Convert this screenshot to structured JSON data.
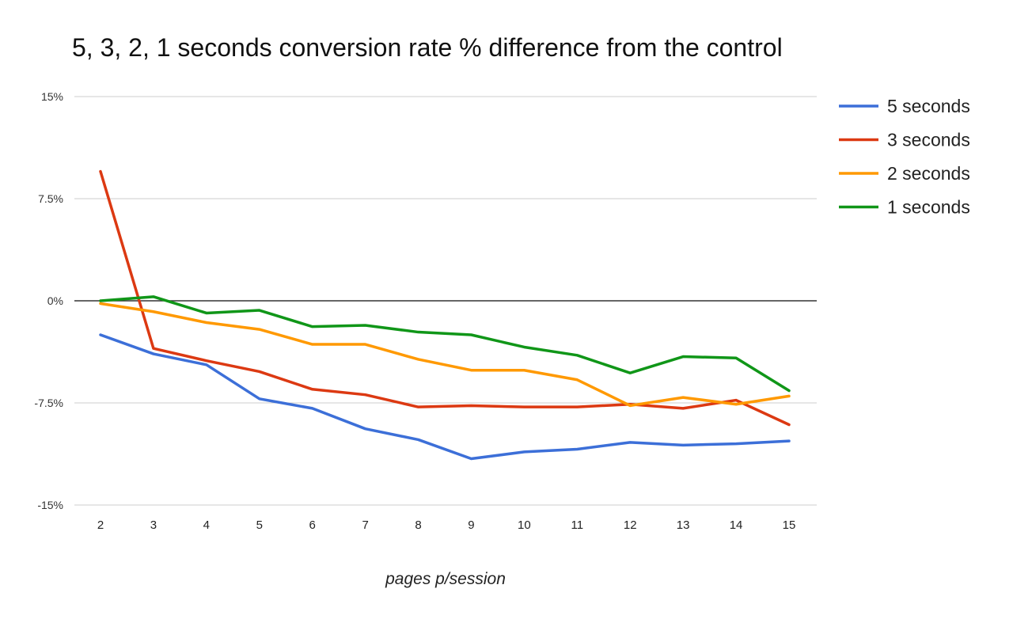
{
  "chart_data": {
    "type": "line",
    "title": "5, 3, 2, 1 seconds conversion rate % difference from the control",
    "xlabel": "pages p/session",
    "ylabel": "",
    "x": [
      2,
      3,
      4,
      5,
      6,
      7,
      8,
      9,
      10,
      11,
      12,
      13,
      14,
      15
    ],
    "ylim": [
      -15,
      15
    ],
    "yticks": [
      15,
      7.5,
      0,
      -7.5,
      -15
    ],
    "ytick_labels": [
      "15%",
      "7.5%",
      "0%",
      "-7.5%",
      "-15%"
    ],
    "grid": true,
    "legend_position": "right",
    "series": [
      {
        "name": "5 seconds",
        "color": "#3c6fd8",
        "values": [
          -2.5,
          -3.9,
          -4.7,
          -7.2,
          -7.9,
          -9.4,
          -10.2,
          -11.6,
          -11.1,
          -10.9,
          -10.4,
          -10.6,
          -10.5,
          -10.3
        ]
      },
      {
        "name": "3 seconds",
        "color": "#dc3912",
        "values": [
          9.5,
          -3.5,
          -4.4,
          -5.2,
          -6.5,
          -6.9,
          -7.8,
          -7.7,
          -7.8,
          -7.8,
          -7.6,
          -7.9,
          -7.3,
          -9.1
        ]
      },
      {
        "name": "2 seconds",
        "color": "#ff9900",
        "values": [
          -0.2,
          -0.8,
          -1.6,
          -2.1,
          -3.2,
          -3.2,
          -4.3,
          -5.1,
          -5.1,
          -5.8,
          -7.7,
          -7.1,
          -7.6,
          -7.0
        ]
      },
      {
        "name": "1 seconds",
        "color": "#109618",
        "values": [
          0.0,
          0.3,
          -0.9,
          -0.7,
          -1.9,
          -1.8,
          -2.3,
          -2.5,
          -3.4,
          -4.0,
          -5.3,
          -4.1,
          -4.2,
          -6.6
        ]
      }
    ]
  }
}
